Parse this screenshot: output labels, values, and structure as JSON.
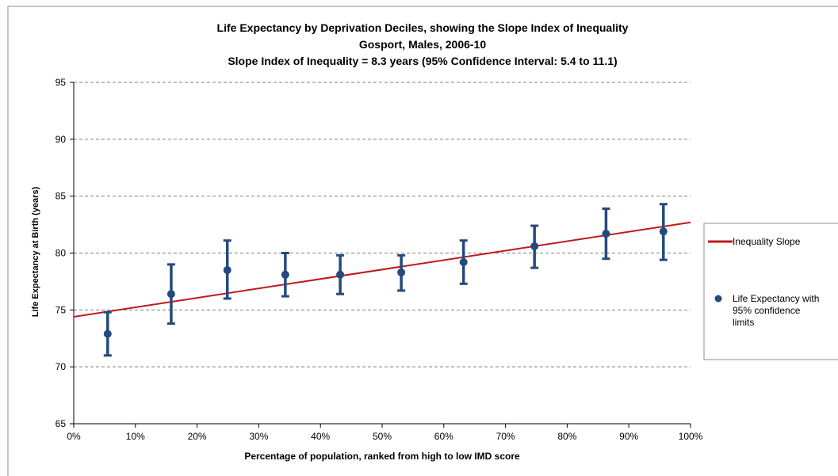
{
  "chart_data": {
    "type": "scatter",
    "title": "Life Expectancy by Deprivation Deciles, showing the Slope Index of Inequality",
    "subtitle": "Gosport, Males, 2006-10",
    "subtitle2": "Slope Index of Inequality = 8.3 years (95% Confidence Interval: 5.4 to 11.1)",
    "xlabel": "Percentage of population, ranked from high to low IMD score",
    "ylabel": "Life Expectancy at Birth (years)",
    "xlim": [
      0,
      100
    ],
    "ylim": [
      65,
      95
    ],
    "x_ticks": [
      0,
      10,
      20,
      30,
      40,
      50,
      60,
      70,
      80,
      90,
      100
    ],
    "x_tick_labels": [
      "0%",
      "10%",
      "20%",
      "30%",
      "40%",
      "50%",
      "60%",
      "70%",
      "80%",
      "90%",
      "100%"
    ],
    "y_ticks": [
      65,
      70,
      75,
      80,
      85,
      90,
      95
    ],
    "y_tick_labels": [
      "65",
      "70",
      "75",
      "80",
      "85",
      "90",
      "95"
    ],
    "grid": "horizontal dashed",
    "legend_position": "right",
    "series": [
      {
        "name": "Life Expectancy with 95% confidence limits",
        "legend_lines": [
          "Life Expectancy with",
          "95% confidence",
          "limits"
        ],
        "kind": "points-with-error-bars",
        "color": "#254a7c",
        "x": [
          5.5,
          15.8,
          24.9,
          34.3,
          43.2,
          53.1,
          63.2,
          74.7,
          86.3,
          95.6
        ],
        "y": [
          72.9,
          76.4,
          78.5,
          78.1,
          78.1,
          78.3,
          79.2,
          80.6,
          81.7,
          81.9
        ],
        "lower": [
          71.0,
          73.8,
          76.0,
          76.2,
          76.4,
          76.7,
          77.3,
          78.7,
          79.5,
          79.4
        ],
        "upper": [
          74.8,
          79.0,
          81.1,
          80.0,
          79.8,
          79.8,
          81.1,
          82.4,
          83.9,
          84.3
        ]
      },
      {
        "name": "Inequality Slope",
        "kind": "line",
        "color": "#c0181b",
        "x": [
          0,
          100
        ],
        "y": [
          74.4,
          82.7
        ]
      }
    ]
  }
}
